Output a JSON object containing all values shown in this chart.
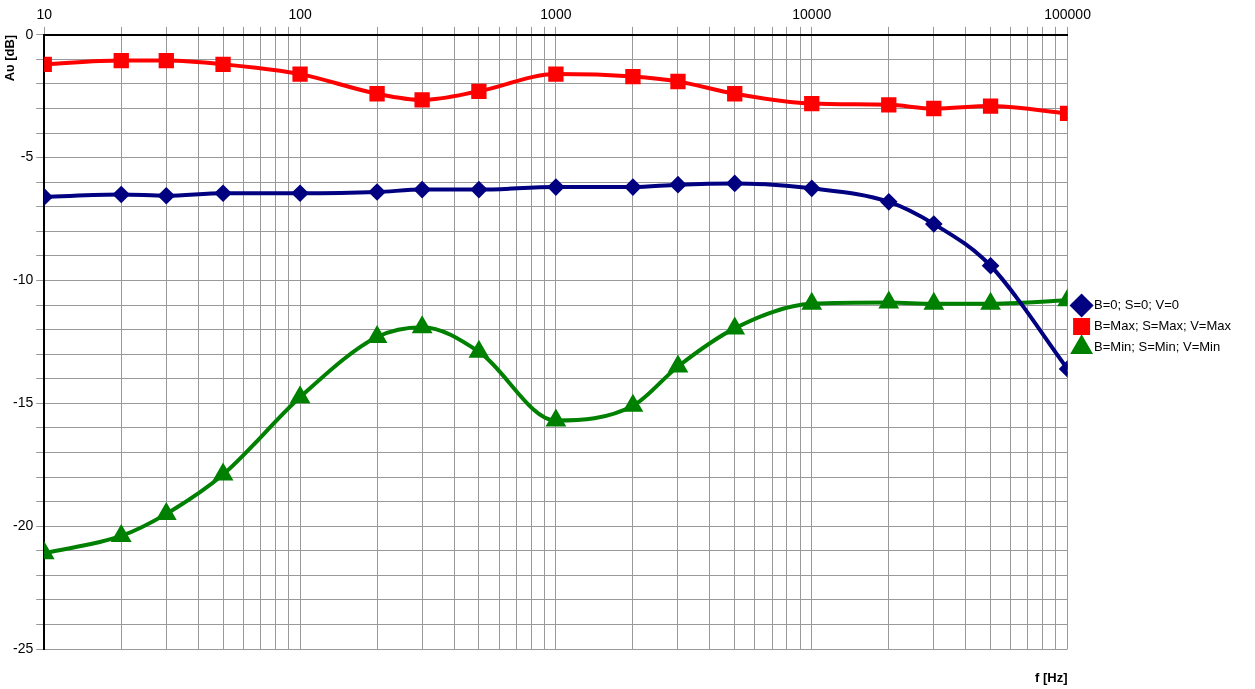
{
  "chart_data": {
    "type": "line",
    "xlabel": "f [Hz]",
    "ylabel": "Aυ [dB]",
    "log": "x",
    "x": [
      10,
      20,
      30,
      50,
      100,
      200,
      300,
      500,
      1000,
      2000,
      3000,
      5000,
      10000,
      20000,
      30000,
      50000,
      100000
    ],
    "xlim": [
      10,
      100000
    ],
    "xticks": [
      10,
      {
        "value": 20,
        "label": null
      },
      {
        "value": 30,
        "label": null
      },
      {
        "value": 40,
        "label": null
      },
      {
        "value": 50,
        "label": null
      },
      {
        "value": 60,
        "label": null
      },
      {
        "value": 70,
        "label": null
      },
      {
        "value": 80,
        "label": null
      },
      {
        "value": 90,
        "label": null
      },
      100,
      {
        "value": 200,
        "label": null
      },
      {
        "value": 300,
        "label": null
      },
      {
        "value": 400,
        "label": null
      },
      {
        "value": 500,
        "label": null
      },
      {
        "value": 600,
        "label": null
      },
      {
        "value": 700,
        "label": null
      },
      {
        "value": 800,
        "label": null
      },
      {
        "value": 900,
        "label": null
      },
      1000,
      {
        "value": 2000,
        "label": null
      },
      {
        "value": 3000,
        "label": null
      },
      {
        "value": 4000,
        "label": null
      },
      {
        "value": 5000,
        "label": null
      },
      {
        "value": 6000,
        "label": null
      },
      {
        "value": 7000,
        "label": null
      },
      {
        "value": 8000,
        "label": null
      },
      {
        "value": 9000,
        "label": null
      },
      10000,
      {
        "value": 20000,
        "label": null
      },
      {
        "value": 30000,
        "label": null
      },
      {
        "value": 40000,
        "label": null
      },
      {
        "value": 50000,
        "label": null
      },
      {
        "value": 60000,
        "label": null
      },
      {
        "value": 70000,
        "label": null
      },
      {
        "value": 80000,
        "label": null
      },
      {
        "value": 90000,
        "label": null
      },
      100000
    ],
    "ylim": [
      -25,
      0
    ],
    "yticks": [
      -25,
      {
        "value": -24,
        "label": null
      },
      {
        "value": -23,
        "label": null
      },
      {
        "value": -22,
        "label": null
      },
      {
        "value": -21,
        "label": null
      },
      -20,
      {
        "value": -19,
        "label": null
      },
      {
        "value": -18,
        "label": null
      },
      {
        "value": -17,
        "label": null
      },
      {
        "value": -16,
        "label": null
      },
      -15,
      {
        "value": -14,
        "label": null
      },
      {
        "value": -13,
        "label": null
      },
      {
        "value": -12,
        "label": null
      },
      {
        "value": -11,
        "label": null
      },
      -10,
      {
        "value": -9,
        "label": null
      },
      {
        "value": -8,
        "label": null
      },
      {
        "value": -7,
        "label": null
      },
      {
        "value": -6,
        "label": null
      },
      -5,
      {
        "value": -4,
        "label": null
      },
      {
        "value": -3,
        "label": null
      },
      {
        "value": -2,
        "label": null
      },
      {
        "value": -1,
        "label": null
      },
      0
    ],
    "grid": true,
    "legend": "right",
    "series": [
      {
        "name": "B=0; S=0; V=0",
        "color": "#000080",
        "marker": "diamond",
        "values": [
          -6.6,
          -6.5,
          -6.55,
          -6.45,
          -6.45,
          -6.4,
          -6.3,
          -6.3,
          -6.2,
          -6.2,
          -6.1,
          -6.05,
          -6.25,
          -6.8,
          -7.7,
          -9.4,
          -13.6
        ]
      },
      {
        "name": "B=Max; S=Max; V=Max",
        "color": "#ff0000",
        "marker": "square",
        "values": [
          -1.2,
          -1.05,
          -1.05,
          -1.2,
          -1.6,
          -2.4,
          -2.65,
          -2.3,
          -1.6,
          -1.7,
          -1.9,
          -2.4,
          -2.8,
          -2.85,
          -3.0,
          -2.9,
          -3.2
        ]
      },
      {
        "name": "B=Min; S=Min; V=Min",
        "color": "#008000",
        "marker": "triangle",
        "values": [
          -21.1,
          -20.4,
          -19.5,
          -17.9,
          -14.75,
          -12.3,
          -11.9,
          -12.9,
          -15.7,
          -15.1,
          -13.5,
          -11.95,
          -10.95,
          -10.9,
          -10.95,
          -10.95,
          -10.8
        ]
      }
    ]
  }
}
